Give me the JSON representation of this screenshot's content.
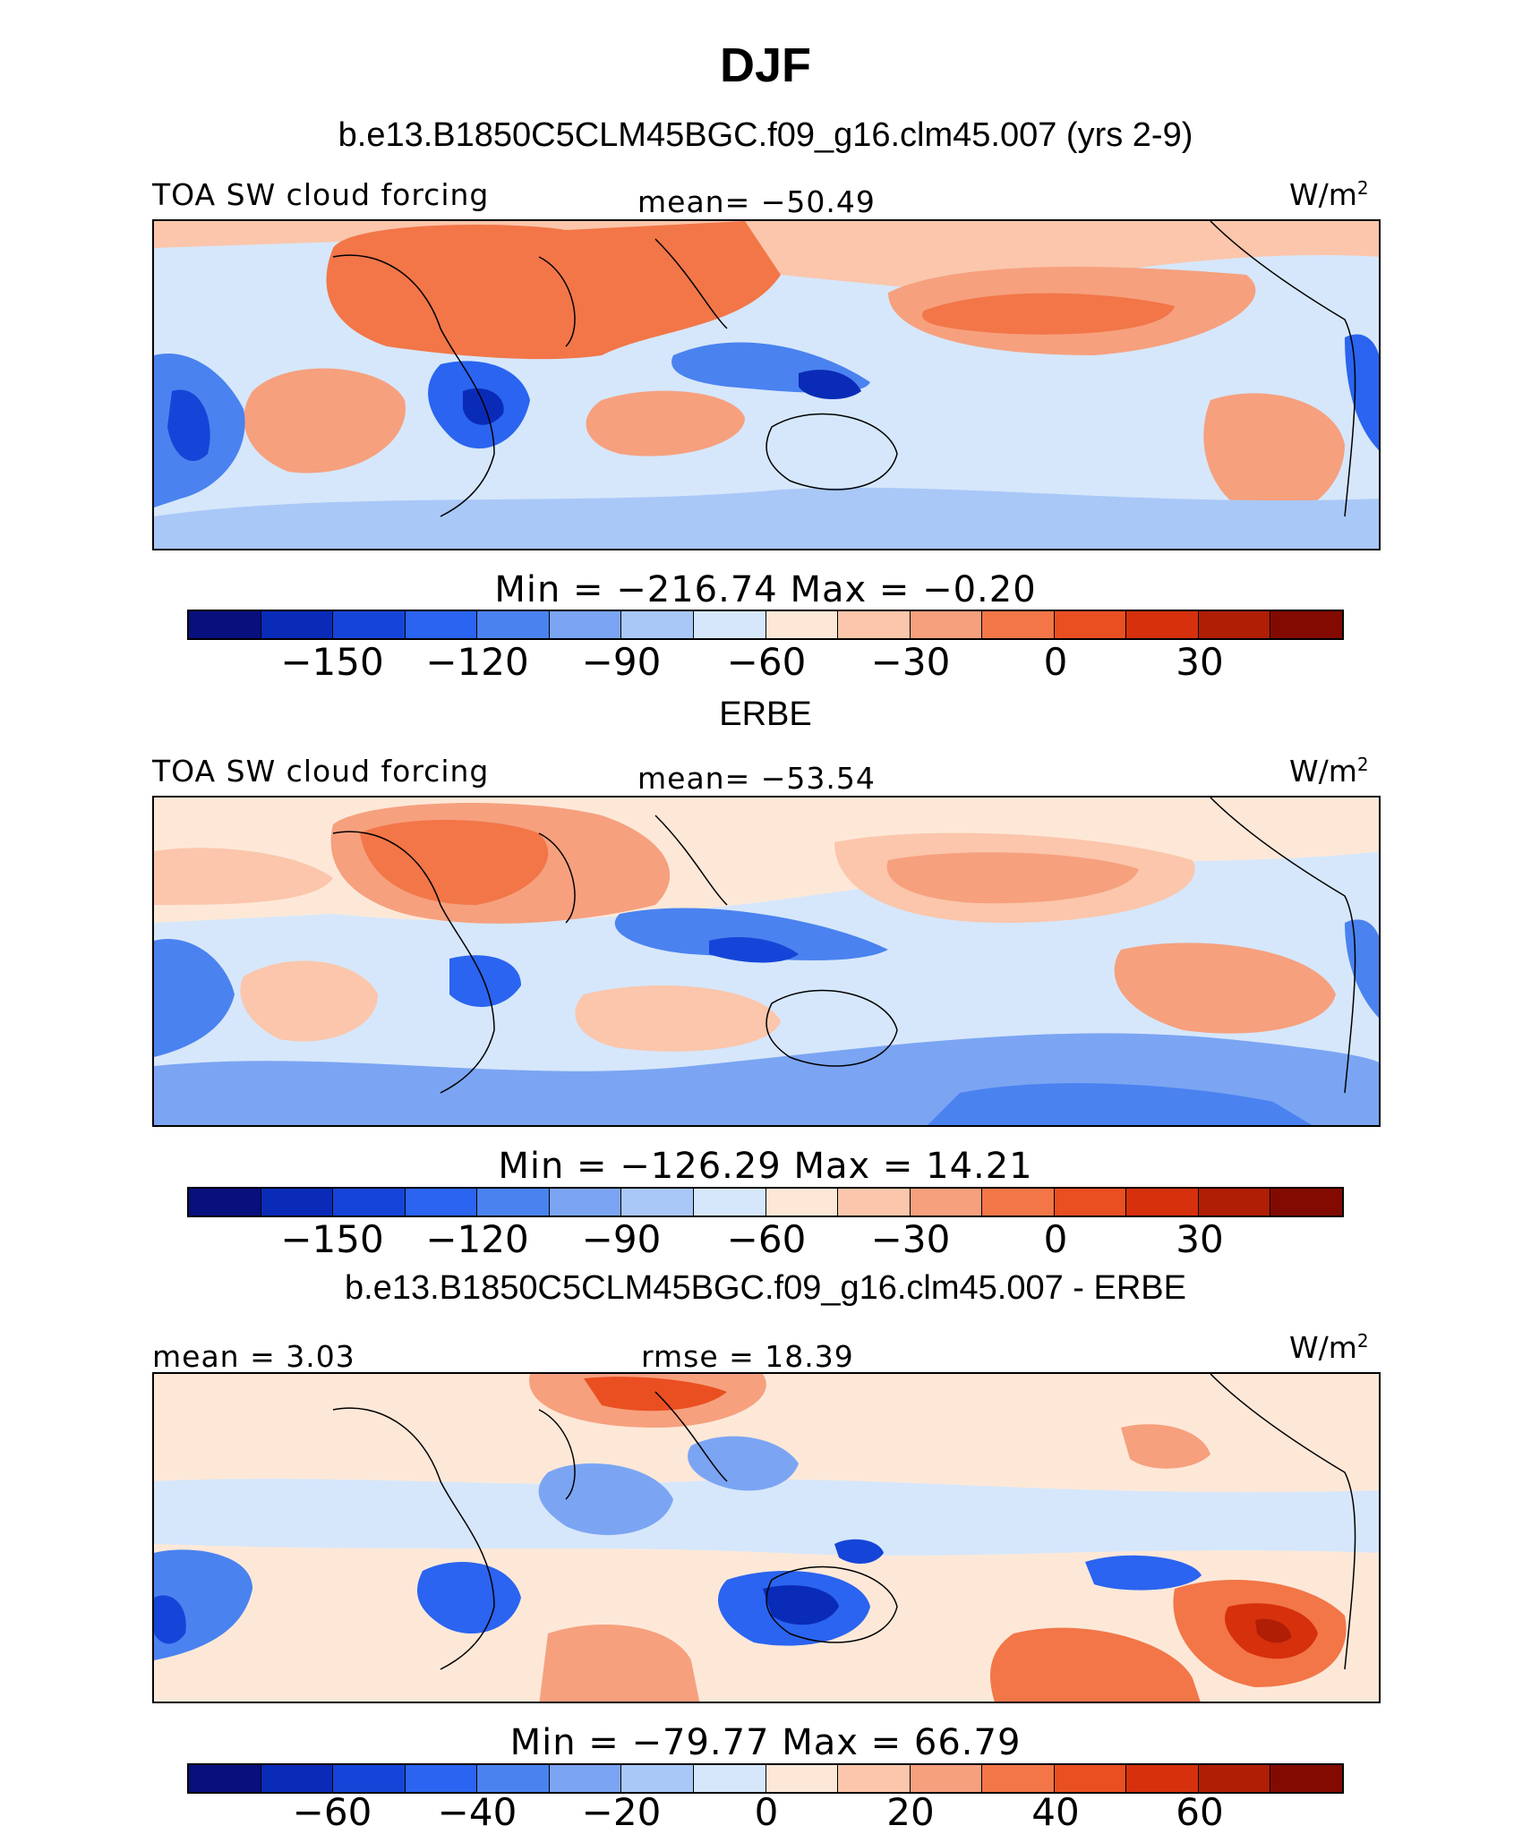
{
  "title": "DJF",
  "colors": {
    "diverging": [
      "#08107e",
      "#0a2bb8",
      "#1545d8",
      "#2a64f0",
      "#4a82f0",
      "#7ba5f3",
      "#a9c8f7",
      "#d6e7fb",
      "#fde8d8",
      "#fbc6ab",
      "#f6a07e",
      "#f27648",
      "#ea4f22",
      "#d6300d",
      "#b01e06",
      "#820a00"
    ]
  },
  "panels": [
    {
      "model": "b.e13.B1850C5CLM45BGC.f09_g16.clm45.007 (yrs 2-9)",
      "left_label": "TOA SW cloud forcing",
      "center_label": "mean= −50.49",
      "units": "W/m",
      "units_sup": "2",
      "stats": "Min = −216.74  Max =   −0.20",
      "ticks": [
        "−150",
        "−120",
        "−90",
        "−60",
        "−30",
        "0",
        "30"
      ]
    },
    {
      "model": "ERBE",
      "left_label": "TOA SW cloud forcing",
      "center_label": "mean= −53.54",
      "units": "W/m",
      "units_sup": "2",
      "stats": "Min = −126.29  Max =   14.21",
      "ticks": [
        "−150",
        "−120",
        "−90",
        "−60",
        "−30",
        "0",
        "30"
      ]
    },
    {
      "model": "b.e13.B1850C5CLM45BGC.f09_g16.clm45.007 - ERBE",
      "left_label": "mean =   3.03",
      "center_label": "rmse =   18.39",
      "units": "W/m",
      "units_sup": "2",
      "stats": "Min = −79.77  Max =   66.79",
      "ticks": [
        "−60",
        "−40",
        "−20",
        "0",
        "20",
        "40",
        "60"
      ]
    }
  ]
}
